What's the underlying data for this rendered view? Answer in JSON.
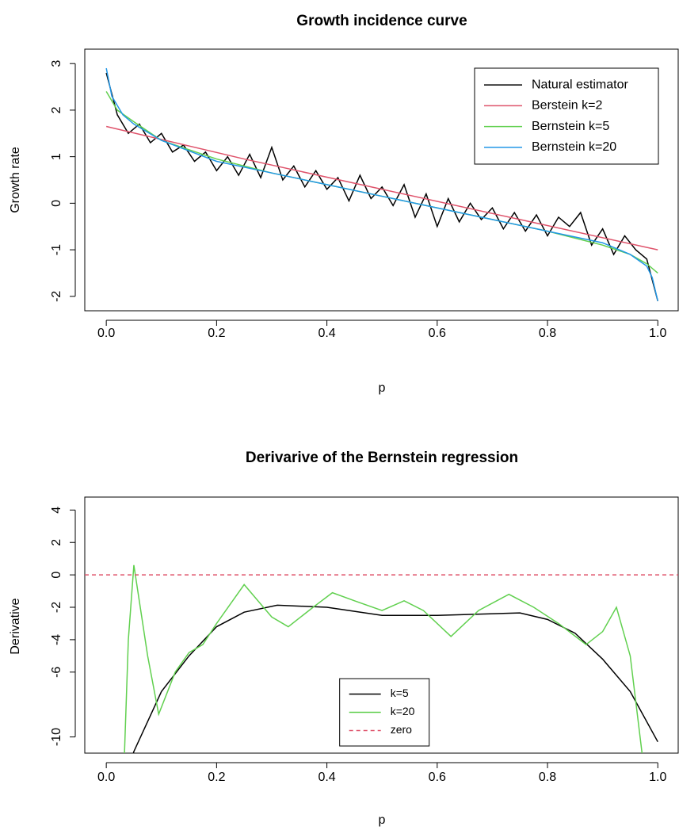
{
  "chart_data": [
    {
      "type": "line",
      "title": "Growth incidence curve",
      "xlabel": "p",
      "ylabel": "Growth rate",
      "xlim": [
        -0.039,
        1.037
      ],
      "ylim": [
        -2.31,
        3.31
      ],
      "xticks": [
        {
          "value": 0,
          "label": "0.0"
        },
        0.2,
        0.4,
        0.6,
        0.8,
        {
          "value": 1,
          "label": "1.0"
        }
      ],
      "yticks": [
        -2,
        -1,
        0,
        1,
        2,
        3
      ],
      "legend": "topright",
      "series": [
        {
          "name": "Natural estimator",
          "color": "#000000",
          "x": [
            0,
            0.02,
            0.04,
            0.06,
            0.08,
            0.1,
            0.12,
            0.14,
            0.16,
            0.18,
            0.2,
            0.22,
            0.24,
            0.26,
            0.28,
            0.3,
            0.32,
            0.34,
            0.36,
            0.38,
            0.4,
            0.42,
            0.44,
            0.46,
            0.48,
            0.5,
            0.52,
            0.54,
            0.56,
            0.58,
            0.6,
            0.62,
            0.64,
            0.66,
            0.68,
            0.7,
            0.72,
            0.74,
            0.76,
            0.78,
            0.8,
            0.82,
            0.84,
            0.86,
            0.88,
            0.9,
            0.92,
            0.94,
            0.96,
            0.98,
            1
          ],
          "values": [
            2.8,
            1.9,
            1.5,
            1.7,
            1.3,
            1.5,
            1.1,
            1.25,
            0.9,
            1.1,
            0.7,
            1.0,
            0.6,
            1.05,
            0.55,
            1.2,
            0.5,
            0.8,
            0.35,
            0.7,
            0.3,
            0.55,
            0.05,
            0.6,
            0.1,
            0.35,
            -0.05,
            0.4,
            -0.3,
            0.2,
            -0.5,
            0.1,
            -0.4,
            0.0,
            -0.35,
            -0.1,
            -0.55,
            -0.2,
            -0.6,
            -0.25,
            -0.7,
            -0.3,
            -0.5,
            -0.2,
            -0.9,
            -0.55,
            -1.1,
            -0.7,
            -1.0,
            -1.2,
            -2.1
          ]
        },
        {
          "name": "Berstein k=2",
          "color": "#df536b",
          "x": [
            0,
            0.25,
            0.5,
            0.75,
            1
          ],
          "values": [
            1.65,
            0.95,
            0.3,
            -0.35,
            -1.0
          ]
        },
        {
          "name": "Bernstein k=5",
          "color": "#61d04f",
          "x": [
            0,
            0.02,
            0.05,
            0.1,
            0.2,
            0.3,
            0.4,
            0.5,
            0.6,
            0.7,
            0.8,
            0.9,
            0.95,
            0.98,
            1
          ],
          "values": [
            2.4,
            2.0,
            1.75,
            1.35,
            0.95,
            0.65,
            0.4,
            0.15,
            -0.1,
            -0.35,
            -0.6,
            -0.9,
            -1.1,
            -1.3,
            -1.5
          ]
        },
        {
          "name": "Bernstein k=20",
          "color": "#2297e6",
          "x": [
            0,
            0.01,
            0.03,
            0.05,
            0.1,
            0.2,
            0.3,
            0.4,
            0.5,
            0.6,
            0.7,
            0.8,
            0.9,
            0.95,
            0.98,
            0.99,
            1
          ],
          "values": [
            2.9,
            2.3,
            1.9,
            1.7,
            1.35,
            0.9,
            0.65,
            0.4,
            0.15,
            -0.1,
            -0.35,
            -0.6,
            -0.85,
            -1.1,
            -1.35,
            -1.6,
            -2.1
          ]
        }
      ]
    },
    {
      "type": "line",
      "title": "Derivarive of the Bernstein regression",
      "xlabel": "p",
      "ylabel": "Derivative",
      "xlim": [
        -0.039,
        1.037
      ],
      "ylim": [
        -11,
        4.8
      ],
      "xticks": [
        {
          "value": 0,
          "label": "0.0"
        },
        0.2,
        0.4,
        0.6,
        0.8,
        {
          "value": 1,
          "label": "1.0"
        }
      ],
      "yticks": [
        -10,
        -6,
        -4,
        -2,
        0,
        2,
        4
      ],
      "legend": "bottom",
      "series": [
        {
          "name": "k=5",
          "color": "#000000",
          "x": [
            0.04,
            0.05,
            0.1,
            0.15,
            0.2,
            0.25,
            0.31,
            0.4,
            0.5,
            0.6,
            0.75,
            0.8,
            0.85,
            0.9,
            0.95,
            1
          ],
          "values": [
            -12,
            -10.9,
            -7.2,
            -5.0,
            -3.2,
            -2.3,
            -1.87,
            -2.0,
            -2.5,
            -2.5,
            -2.35,
            -2.75,
            -3.6,
            -5.2,
            -7.2,
            -10.3
          ]
        },
        {
          "name": "k=20",
          "color": "#61d04f",
          "x": [
            0.03,
            0.04,
            0.05,
            0.075,
            0.095,
            0.125,
            0.15,
            0.175,
            0.2,
            0.25,
            0.3,
            0.33,
            0.375,
            0.41,
            0.45,
            0.5,
            0.54,
            0.575,
            0.625,
            0.675,
            0.73,
            0.775,
            0.82,
            0.87,
            0.9,
            0.925,
            0.95,
            0.975
          ],
          "values": [
            -14,
            -4,
            0.6,
            -5,
            -8.6,
            -6,
            -4.8,
            -4.3,
            -3,
            -0.6,
            -2.6,
            -3.2,
            -2,
            -1.1,
            -1.6,
            -2.2,
            -1.6,
            -2.2,
            -3.8,
            -2.2,
            -1.2,
            -2.0,
            -3.0,
            -4.3,
            -3.5,
            -2.0,
            -5,
            -12
          ]
        },
        {
          "name": "zero",
          "color": "#df536b",
          "dash": true,
          "x": [
            -0.039,
            1.037
          ],
          "values": [
            0,
            0
          ]
        }
      ]
    }
  ]
}
